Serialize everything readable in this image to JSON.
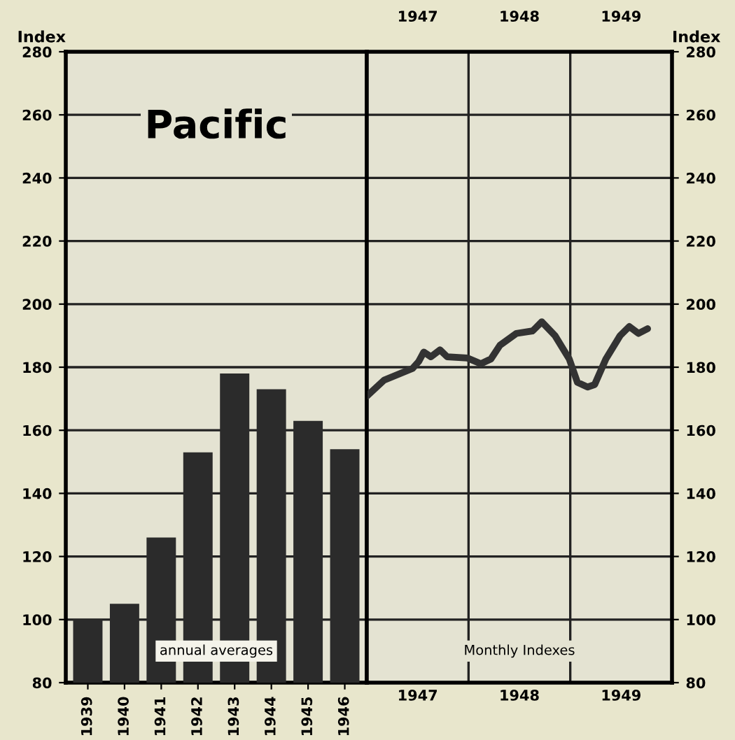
{
  "chart_data": [
    {
      "type": "bar",
      "title": "Pacific",
      "ylabel": "Index",
      "categories": [
        "1939",
        "1940",
        "1941",
        "1942",
        "1943",
        "1944",
        "1945",
        "1946"
      ],
      "values": [
        100,
        105,
        126,
        153,
        178,
        173,
        163,
        154
      ],
      "color": "#2b2b2b",
      "ylim": [
        80,
        280
      ],
      "yticks": [
        80,
        100,
        120,
        140,
        160,
        180,
        200,
        220,
        240,
        260,
        280
      ],
      "grid": "y",
      "annotations": [
        "annual averages"
      ]
    },
    {
      "type": "line",
      "y2label": "Index",
      "series": [
        {
          "color": "#333333",
          "axis": "y2",
          "x": [
            1947.0,
            1947.17,
            1947.45,
            1947.51,
            1947.56,
            1947.63,
            1947.72,
            1947.79,
            1947.99,
            1948.12,
            1948.22,
            1948.31,
            1948.47,
            1948.63,
            1948.72,
            1948.85,
            1948.99,
            1949.07,
            1949.17,
            1949.24,
            1949.35,
            1949.49,
            1949.58,
            1949.67,
            1949.76
          ],
          "values": [
            170.8,
            175.9,
            179.6,
            181.8,
            184.8,
            183.3,
            185.5,
            183.3,
            182.9,
            181.1,
            182.6,
            187.0,
            190.7,
            191.5,
            194.4,
            190.0,
            182.6,
            175.2,
            173.7,
            174.5,
            182.6,
            190.0,
            192.9,
            190.7,
            192.2
          ]
        }
      ],
      "xlim": [
        1947,
        1950
      ],
      "xticks": [
        {
          "value": 1947.5,
          "label": "1947"
        },
        {
          "value": 1948.5,
          "label": "1948"
        },
        {
          "value": 1949.5,
          "label": "1949"
        }
      ],
      "x2lim": [
        1947,
        1950
      ],
      "x2ticks": [
        {
          "value": 1947.5,
          "label": "1947"
        },
        {
          "value": 1948.5,
          "label": "1948"
        },
        {
          "value": 1949.5,
          "label": "1949"
        }
      ],
      "y2lim": [
        80,
        280
      ],
      "y2ticks": [
        80,
        100,
        120,
        140,
        160,
        180,
        200,
        220,
        240,
        260,
        280
      ],
      "grid": "y",
      "ref_lines": [
        {
          "axis": "x",
          "value": 1948,
          "color": "#222222"
        },
        {
          "axis": "x",
          "value": 1949,
          "color": "#222222"
        }
      ],
      "annotations": [
        "Monthly Indexes"
      ]
    }
  ]
}
